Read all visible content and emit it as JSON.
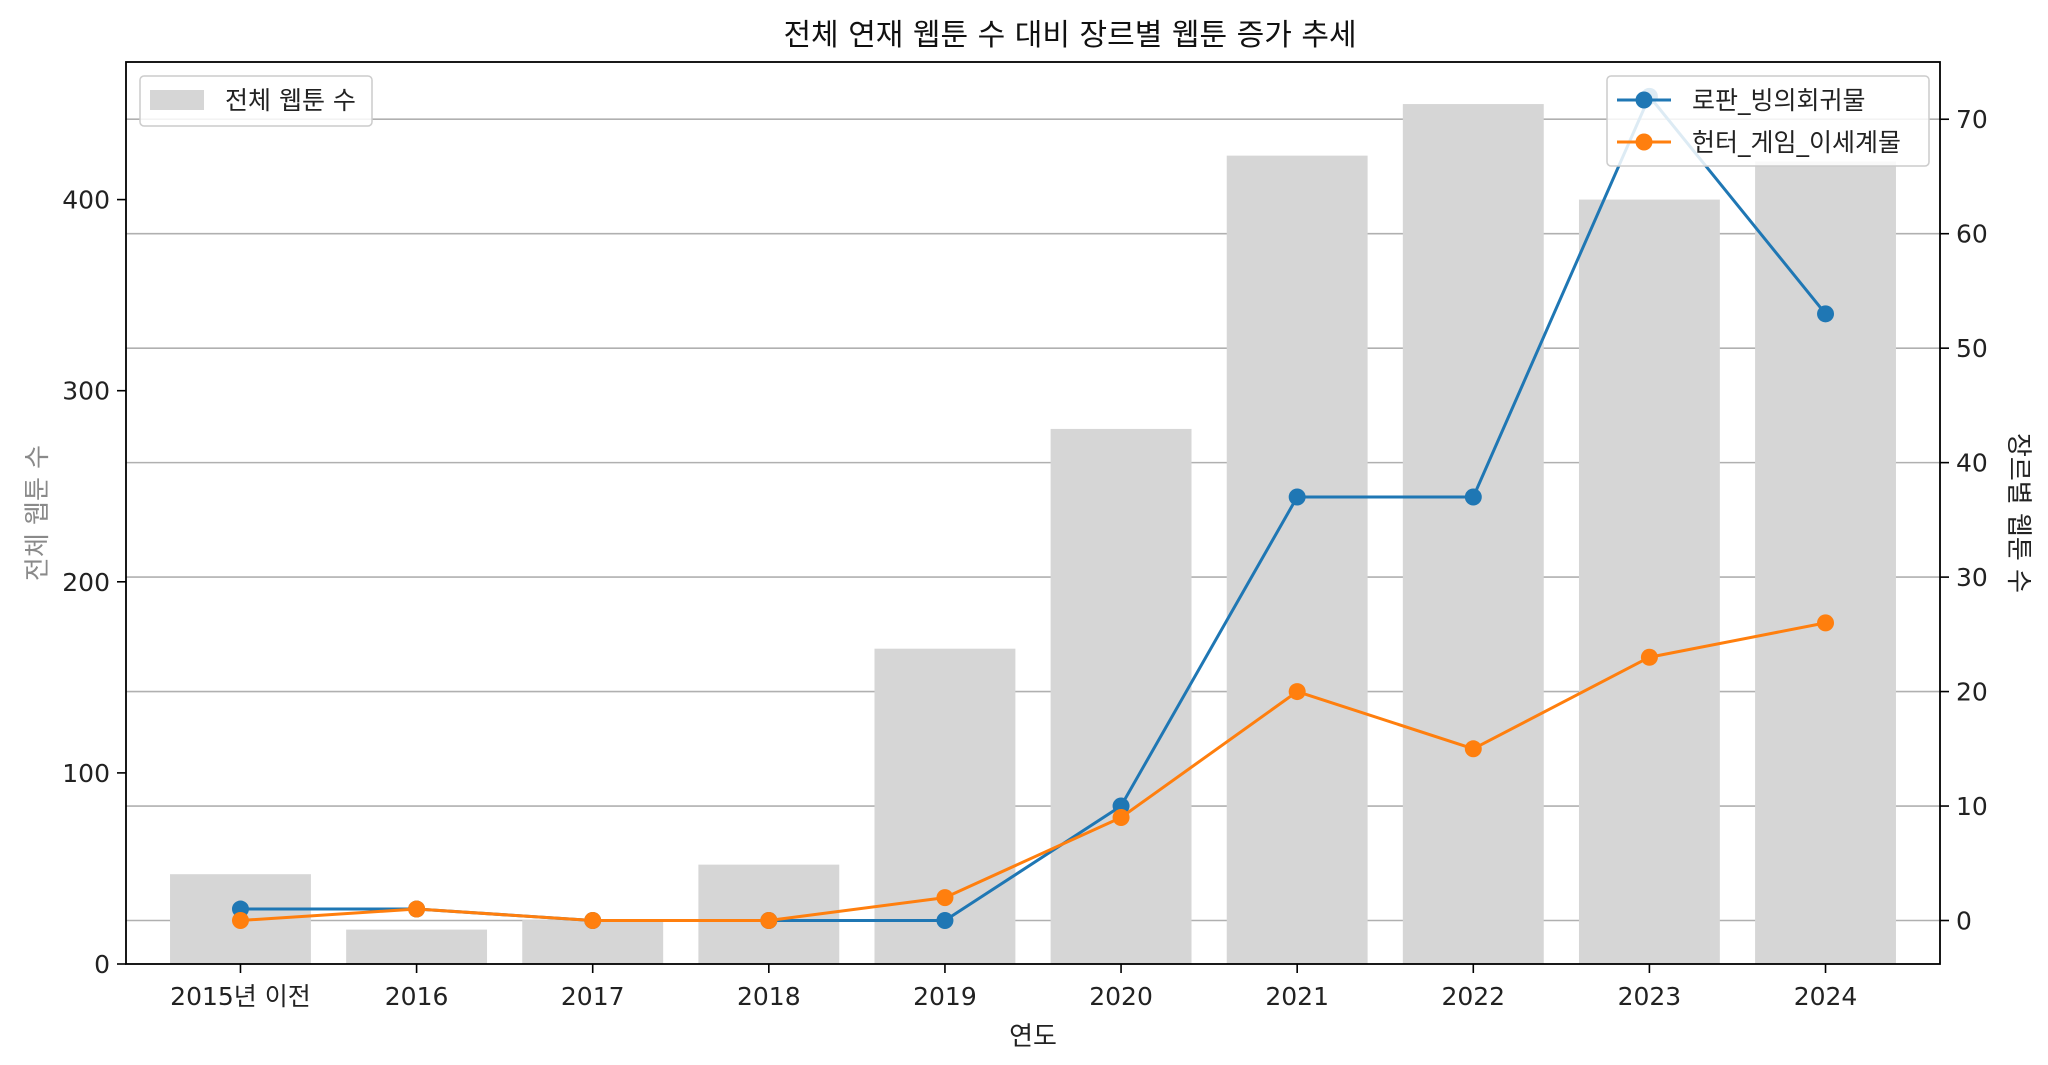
{
  "chart_data": {
    "type": "bar+line",
    "title": "전체 연재 웹툰 수 대비 장르별 웹툰 증가 추세",
    "xlabel": "연도",
    "ylabel_left": "전체 웹툰 수",
    "ylabel_right": "장르별 웹툰 수",
    "categories": [
      "2015년 이전",
      "2016",
      "2017",
      "2018",
      "2019",
      "2020",
      "2021",
      "2022",
      "2023",
      "2024"
    ],
    "left_axis": {
      "ylim": [
        0,
        472
      ],
      "ticks": [
        0,
        100,
        200,
        300,
        400
      ]
    },
    "right_axis": {
      "ylim": [
        -3.8,
        75
      ],
      "ticks": [
        0,
        10,
        20,
        30,
        40,
        50,
        60,
        70
      ]
    },
    "grid": "horizontal-right-axis",
    "bars": {
      "name": "전체 웹툰 수",
      "color": "#d6d6d6",
      "values": [
        47,
        18,
        23,
        52,
        165,
        280,
        423,
        450,
        400,
        420
      ]
    },
    "series": [
      {
        "name": "로판_빙의회귀물",
        "color": "#1f77b4",
        "values": [
          1,
          1,
          0,
          0,
          0,
          10,
          37,
          37,
          72,
          53
        ]
      },
      {
        "name": "헌터_게임_이세계물",
        "color": "#ff7f0e",
        "values": [
          0,
          1,
          0,
          0,
          2,
          9,
          20,
          15,
          23,
          26
        ]
      }
    ],
    "legend_left": "upper-left",
    "legend_right": "upper-right"
  }
}
